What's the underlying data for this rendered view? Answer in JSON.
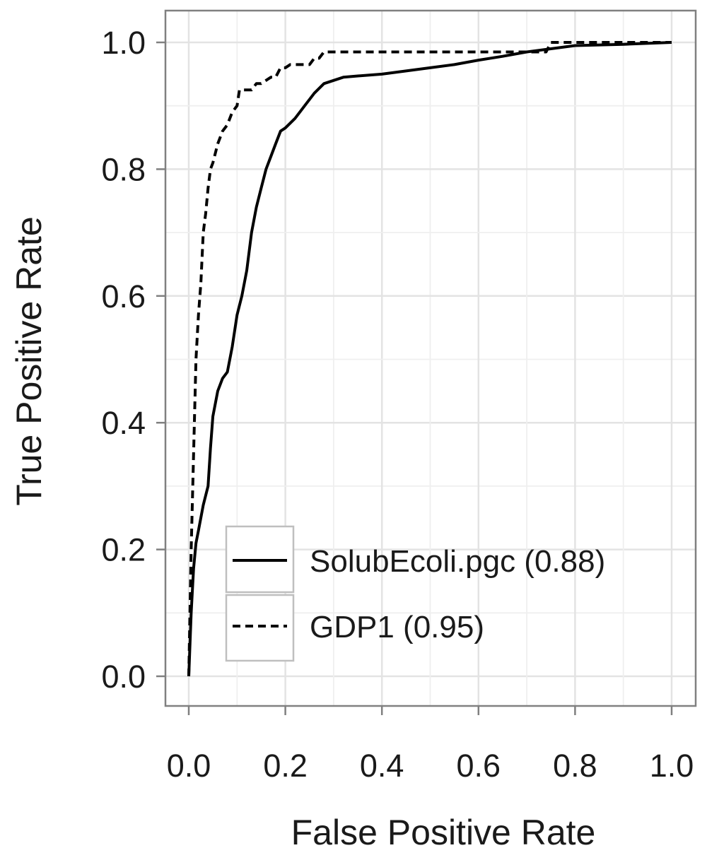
{
  "chart_data": {
    "type": "line",
    "xlabel": "False Positive Rate",
    "ylabel": "True Positive Rate",
    "xlim": [
      0,
      1
    ],
    "ylim": [
      0,
      1
    ],
    "xticks": [
      "0.0",
      "0.2",
      "0.4",
      "0.6",
      "0.8",
      "1.0"
    ],
    "yticks": [
      "0.0",
      "0.2",
      "0.4",
      "0.6",
      "0.8",
      "1.0"
    ],
    "grid": true,
    "minor_grid": true,
    "legend_position": "bottom-left",
    "series": [
      {
        "name": "SolubEcoli.pgc (0.88)",
        "style": "solid",
        "color": "#000000",
        "x": [
          0,
          0.005,
          0.01,
          0.015,
          0.02,
          0.03,
          0.04,
          0.045,
          0.05,
          0.06,
          0.07,
          0.08,
          0.09,
          0.1,
          0.11,
          0.12,
          0.13,
          0.14,
          0.15,
          0.16,
          0.17,
          0.18,
          0.19,
          0.2,
          0.22,
          0.24,
          0.26,
          0.28,
          0.3,
          0.32,
          0.35,
          0.4,
          0.45,
          0.5,
          0.55,
          0.6,
          0.65,
          0.7,
          0.75,
          0.8,
          0.9,
          1.0
        ],
        "y": [
          0,
          0.1,
          0.17,
          0.21,
          0.23,
          0.27,
          0.3,
          0.36,
          0.41,
          0.45,
          0.47,
          0.48,
          0.52,
          0.57,
          0.6,
          0.64,
          0.7,
          0.74,
          0.77,
          0.8,
          0.82,
          0.84,
          0.86,
          0.865,
          0.88,
          0.9,
          0.92,
          0.935,
          0.94,
          0.945,
          0.947,
          0.95,
          0.955,
          0.96,
          0.965,
          0.972,
          0.978,
          0.985,
          0.99,
          0.995,
          0.997,
          1.0
        ]
      },
      {
        "name": "GDP1 (0.95)",
        "style": "dashed",
        "color": "#000000",
        "x": [
          0,
          0.005,
          0.01,
          0.015,
          0.02,
          0.025,
          0.03,
          0.035,
          0.04,
          0.045,
          0.05,
          0.06,
          0.07,
          0.08,
          0.09,
          0.1,
          0.105,
          0.11,
          0.13,
          0.14,
          0.15,
          0.17,
          0.18,
          0.19,
          0.2,
          0.21,
          0.25,
          0.26,
          0.27,
          0.28,
          0.3,
          0.74,
          0.75,
          1.0
        ],
        "y": [
          0,
          0.2,
          0.35,
          0.5,
          0.57,
          0.62,
          0.7,
          0.73,
          0.77,
          0.8,
          0.81,
          0.84,
          0.86,
          0.87,
          0.89,
          0.9,
          0.925,
          0.925,
          0.925,
          0.935,
          0.935,
          0.945,
          0.945,
          0.96,
          0.96,
          0.965,
          0.965,
          0.975,
          0.975,
          0.985,
          0.985,
          0.985,
          1.0,
          1.0
        ]
      }
    ]
  }
}
